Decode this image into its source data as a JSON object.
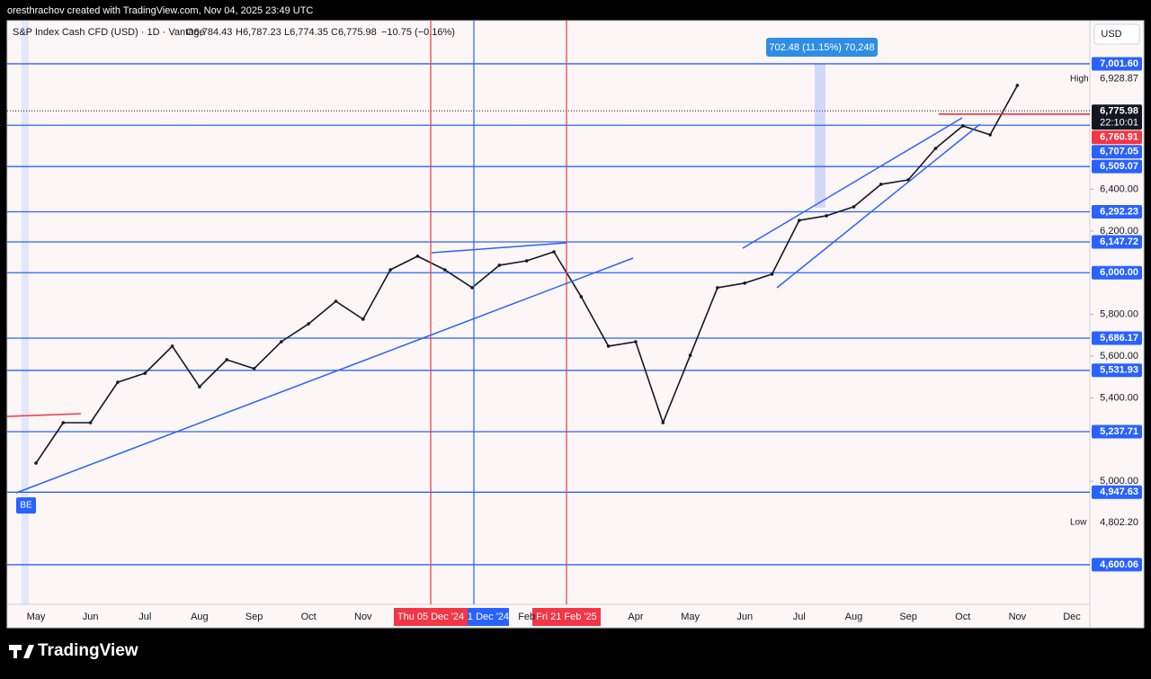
{
  "header": {
    "credit": "oresthrachov created with TradingView.com, Nov 04, 2025 23:49 UTC"
  },
  "legend": {
    "symbol": "S&P Index Cash CFD (USD) · 1D · Vantage",
    "open": "O6,784.43",
    "high": "H6,787.23",
    "low": "L6,774.35",
    "close": "C6,775.98",
    "change": "−10.75 (−0.16%)"
  },
  "currency": "USD",
  "measure": "702.48 (11.15%) 70,248",
  "badge": "BE",
  "cursor_labels": [
    "Thu 05 Dec '24",
    "1 Dec '24",
    "Fri 21 Feb '25"
  ],
  "footer": {
    "brand": "TradingView"
  },
  "chart_data": {
    "type": "line",
    "color": "#131722",
    "categories": [
      "May",
      null,
      "Jun",
      null,
      "Jul",
      null,
      "Aug",
      null,
      "Sep",
      null,
      "Oct",
      null,
      "Nov",
      null,
      null,
      null,
      null,
      null,
      "Feb",
      null,
      null,
      null,
      "Apr",
      null,
      "May",
      null,
      "Jun",
      null,
      "Jul",
      null,
      "Aug",
      null,
      "Sep",
      null,
      "Oct",
      null,
      "Nov",
      null,
      "Dec",
      null
    ],
    "values": [
      5087,
      5281,
      5281,
      5475,
      5518,
      5648,
      5453,
      5583,
      5540,
      5669,
      5755,
      5863,
      5777,
      6014,
      6079,
      6014,
      5928,
      6036,
      6057,
      6100,
      5885,
      5648,
      5669,
      5281,
      5604,
      5928,
      5950,
      5993,
      6251,
      6273,
      6316,
      6424,
      6445,
      6596,
      6704,
      6661,
      6898,
      null,
      null,
      null
    ],
    "ylim": [
      4410,
      7204
    ],
    "yticks": [
      {
        "value": 5000,
        "label": "5,000.00"
      },
      {
        "value": 5400,
        "label": "5,400.00"
      },
      {
        "value": 5600,
        "label": "5,600.00"
      },
      {
        "value": 5800,
        "label": "5,800.00"
      },
      {
        "value": 6200,
        "label": "6,200.00"
      },
      {
        "value": 6400,
        "label": "6,400.00"
      }
    ],
    "levels": [
      {
        "value": 7001.6,
        "label": "7,001.60"
      },
      {
        "value": 6707.05,
        "label": "6,707.05"
      },
      {
        "value": 6509.07,
        "label": "6,509.07"
      },
      {
        "value": 6292.23,
        "label": "6,292.23"
      },
      {
        "value": 6147.72,
        "label": "6,147.72"
      },
      {
        "value": 6000,
        "label": "6,000.00"
      },
      {
        "value": 5686.17,
        "label": "5,686.17"
      },
      {
        "value": 5531.93,
        "label": "5,531.93"
      },
      {
        "value": 5237.71,
        "label": "5,237.71"
      },
      {
        "value": 4947.63,
        "label": "4,947.63"
      },
      {
        "value": 4600.06,
        "label": "4,600.06"
      }
    ],
    "level_color": "#2962ff",
    "red_level": {
      "value": 6760.91,
      "label": "6,760.91",
      "color": "#f23645"
    },
    "last_price": {
      "value": 6775.98,
      "label": "6,775.98",
      "countdown": "22:10:01"
    },
    "high": {
      "text": "High",
      "value": 6928.87,
      "label": "6,928.87"
    },
    "low": {
      "text": "Low",
      "value": 4802.2,
      "label": "4,802.20"
    }
  }
}
